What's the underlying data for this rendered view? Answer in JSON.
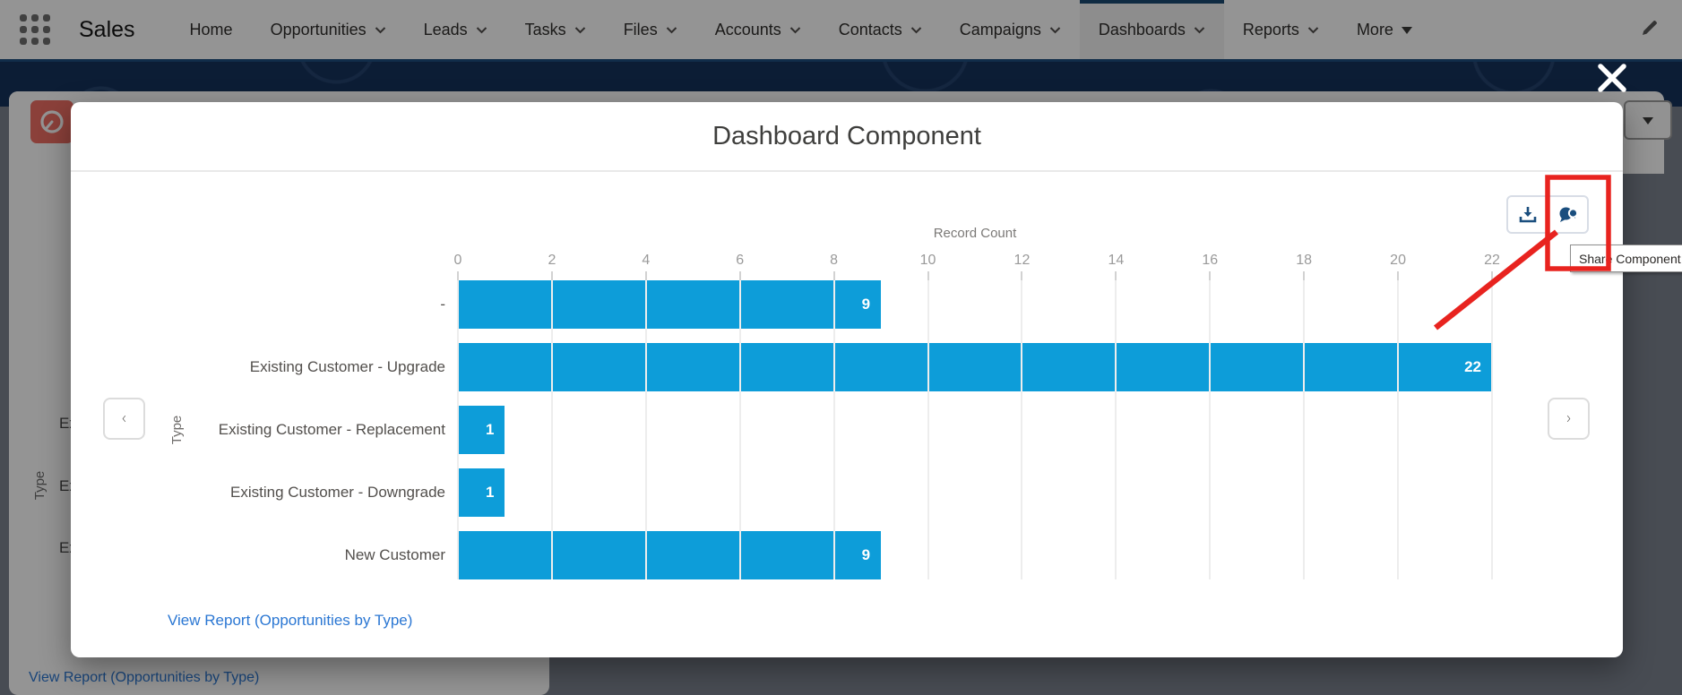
{
  "nav": {
    "app_name": "Sales",
    "items": [
      {
        "label": "Home",
        "chevron": false,
        "active": false
      },
      {
        "label": "Opportunities",
        "chevron": true,
        "active": false
      },
      {
        "label": "Leads",
        "chevron": true,
        "active": false
      },
      {
        "label": "Tasks",
        "chevron": true,
        "active": false
      },
      {
        "label": "Files",
        "chevron": true,
        "active": false
      },
      {
        "label": "Accounts",
        "chevron": true,
        "active": false
      },
      {
        "label": "Contacts",
        "chevron": true,
        "active": false
      },
      {
        "label": "Campaigns",
        "chevron": true,
        "active": false
      },
      {
        "label": "Dashboards",
        "chevron": true,
        "active": true
      },
      {
        "label": "Reports",
        "chevron": true,
        "active": false
      },
      {
        "label": "More",
        "chevron": false,
        "more_triangle": true,
        "active": false
      }
    ]
  },
  "modal": {
    "title": "Dashboard Component",
    "view_report_label": "View Report (Opportunities by Type)",
    "toolbar_icons": [
      "download-icon",
      "share-chat-icon"
    ]
  },
  "tooltip": {
    "label": "Share Component"
  },
  "chart_data": {
    "type": "bar",
    "orientation": "horizontal",
    "title": "",
    "value_axis_label": "Record Count",
    "category_axis_label": "Type",
    "categories": [
      "-",
      "Existing Customer - Upgrade",
      "Existing Customer - Replacement",
      "Existing Customer - Downgrade",
      "New Customer"
    ],
    "values": [
      9,
      22,
      1,
      1,
      9
    ],
    "ticks": [
      0,
      2,
      4,
      6,
      8,
      10,
      12,
      14,
      16,
      18,
      20,
      22
    ],
    "xlim": [
      0,
      22
    ],
    "grid": true,
    "legend": false
  },
  "background_page": {
    "view_report_label": "View Report (Opportunities by Type)",
    "category_axis_label": "Type",
    "partial_row_labels": [
      "Existing Customer - Upgrade",
      "Existing Customer - Replacement",
      "Existing Customer - Downgrade"
    ]
  },
  "colors": {
    "bar": "#0D9DD9",
    "annotation_red": "#E8231F",
    "link": "#2B77D3",
    "nav_active_border": "#1B4A73",
    "banner_navy": "#16325C",
    "icon_navy": "#1A4E7E",
    "dashboard_icon_red": "#EF6E64"
  }
}
